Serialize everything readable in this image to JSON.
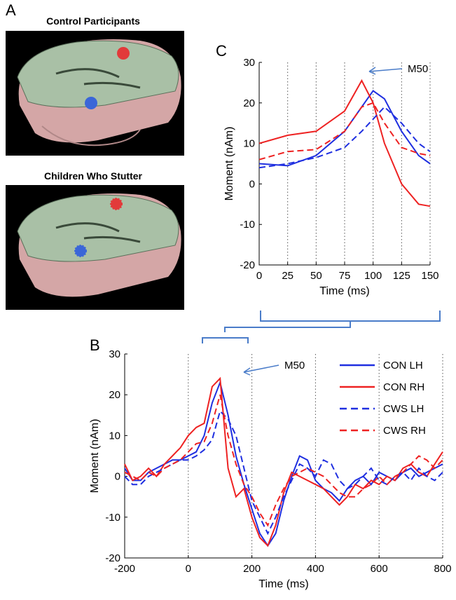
{
  "panel_a": {
    "label": "A",
    "titles": [
      "Control Participants",
      "Children Who Stutter"
    ]
  },
  "chart_data": [
    {
      "type": "line",
      "panel_label": "C",
      "annotation": "M50",
      "x_label": "Time (ms)",
      "y_label": "Moment (nAm)",
      "x": [
        0,
        25,
        50,
        75,
        90,
        100,
        110,
        125,
        140,
        150
      ],
      "series": [
        {
          "color": "#1f2fe0",
          "style": "solid",
          "values": [
            5,
            4.5,
            7,
            13,
            19,
            23,
            21,
            13,
            7,
            5
          ]
        },
        {
          "color": "#ee2222",
          "style": "solid",
          "values": [
            10,
            12,
            13,
            18,
            25.5,
            20,
            10,
            0,
            -5,
            -5.5
          ]
        },
        {
          "color": "#1f2fe0",
          "style": "dashed",
          "values": [
            4,
            5,
            6.5,
            9,
            13,
            16,
            19,
            15,
            10,
            8
          ]
        },
        {
          "color": "#ee2222",
          "style": "dashed",
          "values": [
            6,
            8,
            8.5,
            13,
            19,
            20,
            15,
            9,
            7.5,
            7
          ]
        }
      ],
      "xlim": [
        0,
        150
      ],
      "xticks": [
        0,
        25,
        50,
        75,
        100,
        125,
        150
      ],
      "ylim": [
        -20,
        30
      ],
      "yticks": [
        -20,
        -10,
        0,
        10,
        20,
        30
      ],
      "grid": "x"
    },
    {
      "type": "line",
      "panel_label": "B",
      "annotation": "M50",
      "x_label": "Time (ms)",
      "y_label": "Moment (nAm)",
      "x": [
        -200,
        -175,
        -150,
        -125,
        -100,
        -75,
        -50,
        -25,
        0,
        25,
        50,
        75,
        100,
        125,
        150,
        175,
        200,
        225,
        250,
        275,
        300,
        325,
        350,
        375,
        400,
        425,
        450,
        475,
        500,
        525,
        550,
        575,
        600,
        625,
        650,
        675,
        700,
        725,
        750,
        775,
        800
      ],
      "series": [
        {
          "name": "CON LH",
          "color": "#1f2fe0",
          "style": "solid",
          "values": [
            2,
            -1,
            -1,
            1,
            2,
            3,
            4,
            4,
            5,
            6,
            10,
            18,
            23,
            15,
            5,
            -2,
            -8,
            -14,
            -17,
            -14,
            -6,
            0,
            5,
            4,
            -1,
            -3,
            -4,
            -6,
            -3,
            -1,
            0,
            -2,
            1,
            0,
            -1,
            1,
            2,
            0,
            1,
            2,
            3
          ]
        },
        {
          "name": "CON RH",
          "color": "#ee2222",
          "style": "solid",
          "values": [
            3,
            -1,
            0,
            2,
            0,
            3,
            5,
            7,
            10,
            12,
            13,
            22,
            24,
            2,
            -5,
            -3,
            -10,
            -15,
            -17,
            -12,
            -4,
            1,
            0,
            -1,
            -2,
            -3,
            -5,
            -7,
            -5,
            -2,
            -3,
            -1,
            -2,
            0,
            -1,
            2,
            3,
            1,
            0,
            3,
            6
          ]
        },
        {
          "name": "CWS LH",
          "color": "#1f2fe0",
          "style": "dashed",
          "values": [
            0,
            -2,
            -2,
            0,
            1,
            2,
            3,
            4,
            4,
            5,
            6.5,
            9,
            16,
            14,
            10,
            2,
            -6,
            -10,
            -14,
            -10,
            -5,
            -1,
            3,
            2,
            0,
            4,
            3,
            -1,
            -3,
            -2,
            0,
            2,
            -1,
            -2,
            0,
            1,
            -1,
            2,
            0,
            -1,
            1
          ]
        },
        {
          "name": "CWS RH",
          "color": "#ee2222",
          "style": "dashed",
          "values": [
            1,
            0,
            -1,
            1,
            0,
            2,
            3,
            4,
            6,
            8,
            8.5,
            13,
            20,
            10,
            3,
            -2,
            -5,
            -9,
            -12,
            -7,
            -3,
            0,
            1,
            2,
            1,
            0,
            -2,
            -4,
            -5,
            -5,
            -3,
            -2,
            0,
            -2,
            0,
            1,
            3,
            5,
            4,
            2,
            4
          ]
        }
      ],
      "xlim": [
        -200,
        800
      ],
      "xticks": [
        -200,
        0,
        200,
        400,
        600,
        800
      ],
      "ylim": [
        -20,
        30
      ],
      "yticks": [
        -20,
        -10,
        0,
        10,
        20,
        30
      ],
      "grid": "x",
      "legend": "upper right"
    }
  ]
}
